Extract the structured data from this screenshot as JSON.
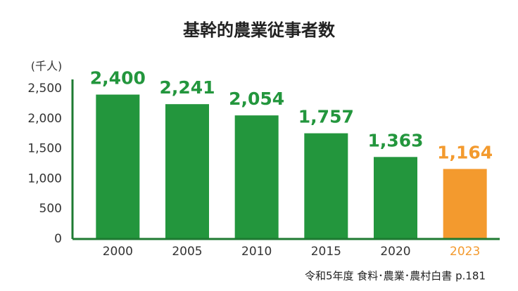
{
  "chart_data": {
    "type": "bar",
    "title": "基幹的農業従事者数",
    "y_label": "(千人)",
    "categories": [
      "2000",
      "2005",
      "2010",
      "2015",
      "2020",
      "2023"
    ],
    "values": [
      2400,
      2241,
      2054,
      1757,
      1363,
      1164
    ],
    "value_labels": [
      "2,400",
      "2,241",
      "2,054",
      "1,757",
      "1,363",
      "1,164"
    ],
    "colors": [
      "#23963d",
      "#23963d",
      "#23963d",
      "#23963d",
      "#23963d",
      "#f39a2e"
    ],
    "category_label_colors": [
      "#333333",
      "#333333",
      "#333333",
      "#333333",
      "#333333",
      "#f39a2e"
    ],
    "ylim": [
      0,
      2500
    ],
    "yticks": [
      0,
      500,
      {
        "value": 1000,
        "label": "1,000"
      },
      {
        "value": 1500,
        "label": "1,500"
      },
      {
        "value": 2000,
        "label": "2,000"
      },
      {
        "value": 2500,
        "label": "2,500"
      }
    ],
    "axis_color": "#1e7a32",
    "source": "令和5年度 食料･農業･農村白書 p.181"
  }
}
